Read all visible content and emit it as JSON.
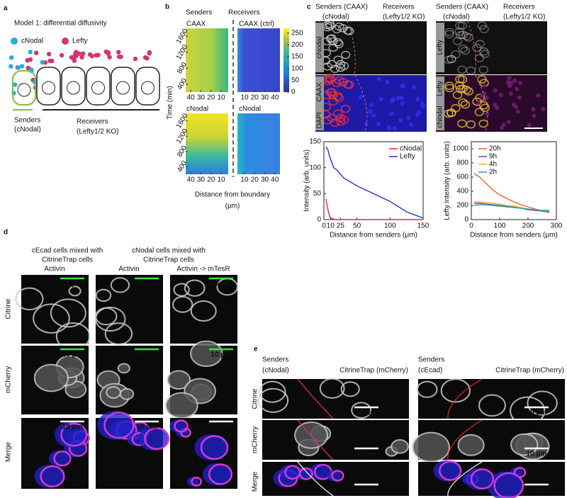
{
  "panel_a": {
    "letter": "a",
    "title": "Model 1: differential diffusivity",
    "legend": [
      "cNodal",
      "Lefty"
    ],
    "senders": [
      "Senders",
      "(cNodal)"
    ],
    "receivers": [
      "Receivers",
      "(Lefty1/2 KO)"
    ]
  },
  "panel_b": {
    "letter": "b",
    "senders": "Senders",
    "receivers": "Receivers",
    "rows": [
      [
        "CAAX",
        "CAAX (ctrl)"
      ],
      [
        "cNodal",
        "cNodal"
      ]
    ],
    "ylabel": "Time (min)",
    "ylim": [
      200,
      1800
    ],
    "yticks": [
      400,
      800,
      1200,
      1600
    ],
    "xlim_senders": [
      45,
      3
    ],
    "xticks_senders": [
      40,
      30,
      20,
      10
    ],
    "xlim_receivers": [
      3,
      45
    ],
    "xticks_receivers": [
      10,
      20,
      30,
      40
    ],
    "xlabel": [
      "Distance from boundary",
      "(μm)"
    ],
    "colorbar": {
      "lim": [
        0,
        270
      ],
      "ticks": [
        0,
        50,
        100,
        150,
        200,
        250
      ]
    }
  },
  "panel_c": {
    "letter": "c",
    "headers": [
      [
        "Senders (CAAX)",
        "(cNodal)",
        "Receivers",
        "(Lefty1/2 KO)"
      ],
      [
        "Senders (CAAX)",
        "(cNodal)",
        "Receivers",
        "(Lefty1/2 KO)"
      ]
    ],
    "channels": {
      "left_top": "cNodal",
      "left_bottom": [
        "DAPI",
        "CAAX"
      ],
      "right_top": "Lefty",
      "right_bottom": [
        "cNodal",
        "Lefty"
      ]
    },
    "charts": [
      {
        "type": "line",
        "xlabel": "Distance from senders (μm)",
        "ylabel": "Intensity (arb. units)",
        "xlim": [
          0,
          150
        ],
        "xticks": [
          0,
          10,
          25,
          50,
          100,
          150
        ],
        "ylim": [
          0,
          150
        ],
        "yticks": [
          0,
          50,
          100,
          150
        ],
        "x": [
          3,
          6,
          9,
          12,
          15,
          20,
          30,
          50,
          75,
          100,
          125,
          150
        ],
        "series": [
          {
            "name": "cNodal",
            "color": "#e8272a",
            "values": [
              40,
              20,
              5,
              2,
              1,
              0,
              0,
              0,
              0,
              0,
              0,
              0
            ]
          },
          {
            "name": "Lefty",
            "color": "#2633c9",
            "values": [
              140,
              135,
              120,
              110,
              100,
              95,
              80,
              65,
              50,
              35,
              15,
              3
            ]
          }
        ]
      },
      {
        "type": "line",
        "xlabel": "Distance from senders (μm)",
        "ylabel": "Lefty intensity (arb. units)",
        "xlim": [
          0,
          300
        ],
        "xticks": [
          0,
          100,
          200,
          300
        ],
        "ylim": [
          0,
          1100
        ],
        "yticks": [
          0,
          200,
          400,
          600,
          800,
          1000
        ],
        "x": [
          10,
          30,
          50,
          75,
          100,
          125,
          150,
          175,
          200,
          225,
          250,
          275
        ],
        "series": [
          {
            "name": "20h",
            "color": "#e8622a",
            "values": [
              650,
              600,
              520,
              420,
              350,
              300,
              250,
              210,
              180,
              150,
              120,
              100
            ]
          },
          {
            "name": "9h",
            "color": "#7b3fa8",
            "values": [
              230,
              230,
              220,
              210,
              200,
              190,
              180,
              160,
              140,
              130,
              120,
              110
            ]
          },
          {
            "name": "4h",
            "color": "#f0b628",
            "values": [
              250,
              250,
              240,
              230,
              220,
              200,
              190,
              170,
              150,
              140,
              130,
              120
            ]
          },
          {
            "name": "2h",
            "color": "#2aa6a6",
            "values": [
              200,
              210,
              210,
              200,
              190,
              180,
              170,
              160,
              150,
              140,
              130,
              130
            ]
          }
        ]
      }
    ]
  },
  "panel_d": {
    "letter": "d",
    "groups": [
      [
        "cEcad cells mixed with",
        "CitrineTrap cells"
      ],
      [
        "cNodal cells mixed with",
        "CitrineTrap cells"
      ]
    ],
    "columns": [
      "Activin",
      "Activin",
      "Activin -> mTesR"
    ],
    "rows": [
      "Citrine",
      "mCherry",
      "Merge"
    ],
    "scale": "10 μm"
  },
  "panel_e": {
    "letter": "e",
    "columns": [
      [
        "Senders",
        "(cNodal)",
        "CitrineTrap (mCherry)"
      ],
      [
        "Senders",
        "(cEcad)",
        "CitrineTrap (mCherry)"
      ]
    ],
    "rows": [
      "Citrine",
      "mCherry",
      "Merge"
    ],
    "scale": "10 μm"
  }
}
